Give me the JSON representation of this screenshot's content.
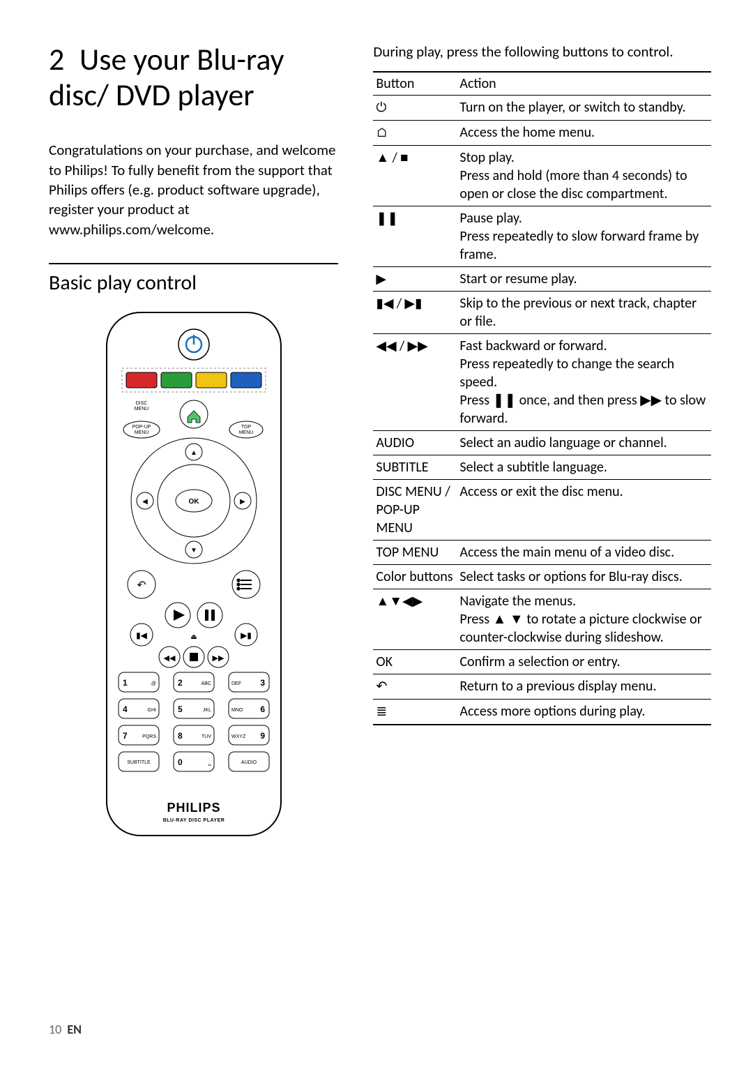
{
  "page": {
    "number": "10",
    "lang": "EN"
  },
  "chapter": {
    "num": "2",
    "title": "Use your Blu-ray disc/ DVD player"
  },
  "intro": "Congratulations on your purchase, and welcome to Philips! To fully benefit from the support that Philips offers (e.g. product software upgrade), register your product at www.philips.com/welcome.",
  "section_title": "Basic play control",
  "right_intro": "During play, press the following buttons to control.",
  "table": {
    "columns": [
      "Button",
      "Action"
    ],
    "rows": [
      {
        "button_icon": "⏻",
        "button_text": "",
        "action": "Turn on the player, or switch to standby."
      },
      {
        "button_icon": "⌂",
        "button_text": "",
        "action": "Access the home menu."
      },
      {
        "button_icon": "▲ / ■",
        "button_text": "",
        "action": "Stop play.\nPress and hold (more than 4 seconds) to open or close the disc compartment."
      },
      {
        "button_icon": "❚❚",
        "button_text": "",
        "action": "Pause play.\nPress repeatedly to slow forward frame by frame."
      },
      {
        "button_icon": "▶",
        "button_text": "",
        "action": "Start or resume play."
      },
      {
        "button_icon": "▮◀ / ▶▮",
        "button_text": "",
        "action": "Skip to the previous or next track, chapter or file."
      },
      {
        "button_icon": "◀◀ / ▶▶",
        "button_text": "",
        "action_parts": [
          "Fast backward or forward.\nPress repeatedly to change the search speed.\nPress ",
          "❚❚",
          " once, and then press ",
          "▶▶",
          " to slow forward."
        ]
      },
      {
        "button_icon": "",
        "button_text": "AUDIO",
        "action": "Select an audio language or channel."
      },
      {
        "button_icon": "",
        "button_text": "SUBTITLE",
        "action": "Select a subtitle language."
      },
      {
        "button_icon": "",
        "button_text": "DISC MENU / POP-UP MENU",
        "action": "Access or exit the disc menu."
      },
      {
        "button_icon": "",
        "button_text": "TOP MENU",
        "action": "Access the main menu of a video disc."
      },
      {
        "button_icon": "",
        "button_text": "Color buttons",
        "action": "Select tasks or options for Blu-ray discs."
      },
      {
        "button_icon": "▲▼◀▶",
        "button_text": "",
        "action_parts": [
          "Navigate the menus.\nPress ",
          "▲ ▼",
          " to rotate a picture clockwise or counter-clockwise during slideshow."
        ]
      },
      {
        "button_icon": "",
        "button_text": "OK",
        "action": "Confirm a selection or entry."
      },
      {
        "button_icon": "↶",
        "button_text": "",
        "action": "Return to a previous display menu."
      },
      {
        "button_icon": "≣",
        "button_text": "",
        "action": "Access more options during play."
      }
    ]
  },
  "remote": {
    "brand": "PHILIPS",
    "brand_sub": "BLU-RAY DISC PLAYER",
    "labels": {
      "disc_menu": "DISC\nMENU",
      "popup_menu": "POP-UP\nMENU",
      "top_menu": "TOP\nMENU",
      "ok": "OK",
      "subtitle": "SUBTITLE",
      "audio": "AUDIO"
    },
    "keypad": [
      {
        "n": "1",
        "sub": ".@"
      },
      {
        "n": "2",
        "sub": "ABC"
      },
      {
        "n": "3",
        "sub": "DEF",
        "right": true
      },
      {
        "n": "4",
        "sub": "GHI"
      },
      {
        "n": "5",
        "sub": "JKL"
      },
      {
        "n": "6",
        "sub": "MNO",
        "right": true
      },
      {
        "n": "7",
        "sub": "PQRS"
      },
      {
        "n": "8",
        "sub": "TUV"
      },
      {
        "n": "9",
        "sub": "WXYZ",
        "right": true
      },
      {
        "n": "0",
        "sub": "␣"
      }
    ],
    "colors": {
      "red": "#d62828",
      "green": "#2a9d3a",
      "yellow": "#f1c40f",
      "blue": "#1f5fbf"
    },
    "home_fill": "#4fc26b"
  }
}
